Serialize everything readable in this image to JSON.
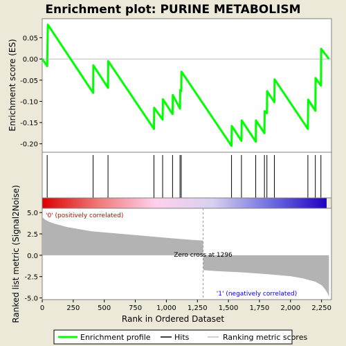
{
  "chart_data": {
    "type": "line",
    "title": "Enrichment plot: PURINE METABOLISM",
    "top_panel": {
      "ylabel": "Enrichment score (ES)",
      "ylim": [
        -0.22,
        0.095
      ],
      "yticks": [
        0.05,
        0.0,
        -0.05,
        -0.1,
        -0.15,
        -0.2
      ],
      "ytick_labels": [
        "0.05",
        "0.00",
        "-0.05",
        "-0.10",
        "-0.15",
        "-0.20"
      ],
      "series": [
        {
          "name": "Enrichment profile",
          "color": "#00ff00",
          "x": [
            0,
            40,
            45,
            410,
            412,
            530,
            532,
            900,
            902,
            970,
            972,
            1050,
            1052,
            1110,
            1112,
            1120,
            1122,
            1525,
            1527,
            1605,
            1607,
            1720,
            1722,
            1790,
            1792,
            1810,
            1812,
            1870,
            1872,
            2140,
            2142,
            2200,
            2202,
            2245,
            2247,
            2310
          ],
          "y": [
            0.0,
            -0.017,
            0.081,
            -0.08,
            -0.015,
            -0.068,
            -0.005,
            -0.165,
            -0.115,
            -0.143,
            -0.095,
            -0.13,
            -0.085,
            -0.117,
            -0.073,
            -0.076,
            -0.03,
            -0.205,
            -0.158,
            -0.193,
            -0.145,
            -0.195,
            -0.145,
            -0.175,
            -0.123,
            -0.128,
            -0.076,
            -0.102,
            -0.048,
            -0.165,
            -0.096,
            -0.122,
            -0.045,
            -0.063,
            0.024,
            0.0
          ]
        }
      ]
    },
    "hits": [
      40,
      410,
      530,
      900,
      970,
      1050,
      1110,
      1120,
      1525,
      1605,
      1720,
      1790,
      1810,
      1870,
      2140,
      2200,
      2245
    ],
    "bottom_panel": {
      "ylabel": "Ranked list metric (Signal2Noise)",
      "xlabel": "Rank in Ordered Dataset",
      "xlim": [
        0,
        2330
      ],
      "ylim": [
        -5.2,
        5.5
      ],
      "yticks": [
        5.0,
        2.5,
        0.0,
        -2.5,
        -5.0
      ],
      "ytick_labels": [
        "5.0",
        "2.5",
        "0.0",
        "-2.5",
        "-5.0"
      ],
      "xticks": [
        0,
        250,
        500,
        750,
        1000,
        1250,
        1500,
        1750,
        2000,
        2250
      ],
      "xtick_labels": [
        "0",
        "250",
        "500",
        "750",
        "1,000",
        "1,250",
        "1,500",
        "1,750",
        "2,000",
        "2,250"
      ],
      "metric_curve": {
        "rank": [
          0,
          5,
          20,
          50,
          100,
          200,
          400,
          600,
          800,
          1000,
          1200,
          1296,
          1297,
          1400,
          1600,
          1800,
          2000,
          2100,
          2200,
          2250,
          2280,
          2300,
          2310
        ],
        "value": [
          4.7,
          4.4,
          4.2,
          3.95,
          3.7,
          3.3,
          2.8,
          2.55,
          2.3,
          2.05,
          1.8,
          1.72,
          -1.75,
          -1.85,
          -2.0,
          -2.2,
          -2.45,
          -2.7,
          -3.1,
          -3.5,
          -4.0,
          -4.5,
          -4.85
        ]
      },
      "zero_cross_rank": 1296,
      "zero_cross_label": "Zero cross at 1296",
      "positive_label": "'0' (positively correlated)",
      "negative_label": "'1' (negatively correlated)",
      "positive_label_color": "#cc0000",
      "negative_label_color": "#0000cc"
    },
    "legend": {
      "items": [
        {
          "label": "Enrichment profile",
          "color": "#00ff00"
        },
        {
          "label": "Hits",
          "color": "#000000"
        },
        {
          "label": "Ranking metric scores",
          "color": "#c0c0c0"
        }
      ]
    },
    "colors": {
      "profile": "#00ff00",
      "metric_fill": "#b3b3b3",
      "heat_stops": [
        "#dd0000",
        "#f07a7a",
        "#ffd0ec",
        "#d8d0f0",
        "#7070e0",
        "#2000c0"
      ]
    }
  }
}
